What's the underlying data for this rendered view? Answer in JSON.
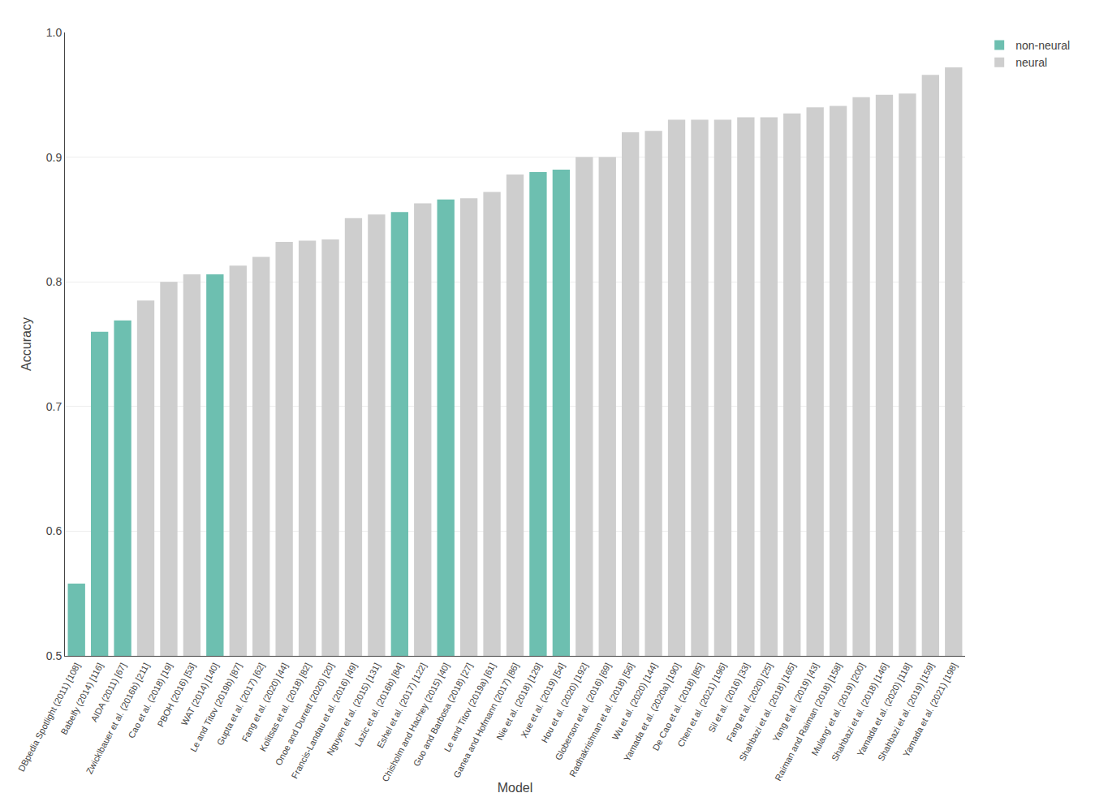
{
  "chart_data": {
    "type": "bar",
    "xlabel": "Model",
    "ylabel": "Accuracy",
    "categories": [
      "DBpedia Spotlight (2011) [108]",
      "Babelfy (2014) [116]",
      "AIDA (2011) [67]",
      "Zwicklbauer et al. (2016b) [211]",
      "Cao et al. (2018) [19]",
      "PBOH (2016) [53]",
      "WAT (2014) [140]",
      "Le and Titov (2019b) [87]",
      "Gupta et al. (2017) [62]",
      "Fang et al. (2020) [44]",
      "Kolitsas et al. (2018) [82]",
      "Onoe and Durrett (2020) [20]",
      "Francis-Landau et al. (2016) [49]",
      "Nguyen et al. (2015) [131]",
      "Lazic et al. (2016b) [84]",
      "Eshel et al. (2017) [122]",
      "Chisholm and Hachey (2015) [40]",
      "Guo and Barbosa (2018) [27]",
      "Le and Titov (2019a) [61]",
      "Ganea and Hofmann (2017) [86]",
      "Nie et al. (2018) [129]",
      "Xue et al. (2019) [54]",
      "Hou et al. (2020) [192]",
      "Globerson et al. (2016) [69]",
      "Radhakrishnan et al. (2018) [56]",
      "Wu et al. (2020) [144]",
      "Yamada et al. (2020a) [190]",
      "De Cao et al. (2018) [85]",
      "Chen et al. (2021) [196]",
      "Sil et al. (2016) [33]",
      "Fang et al. (2020) [25]",
      "Shahbazi et al. (2018) [165]",
      "Yang et al. (2019) [43]",
      "Raiman and Raiman (2018) [158]",
      "Mulang' et al. (2019) [200]",
      "Shahbazi et al. (2018) [146]",
      "Yamada et al. (2020) [118]",
      "Shahbazi et al. (2019) [159]",
      "Yamada et al. (2021) [198]"
    ],
    "series": [
      {
        "name": "non-neural",
        "color": "#6dbfb0",
        "values": [
          0.558,
          0.76,
          0.769,
          null,
          null,
          null,
          0.806,
          null,
          null,
          null,
          null,
          null,
          null,
          null,
          0.856,
          null,
          0.866,
          null,
          null,
          null,
          0.888,
          0.89,
          null,
          null,
          null,
          null,
          null,
          null,
          null,
          null,
          null,
          null,
          null,
          null,
          null,
          null,
          null,
          null,
          null
        ]
      },
      {
        "name": "neural",
        "color": "#cecece",
        "values": [
          null,
          null,
          null,
          0.785,
          0.8,
          0.806,
          null,
          0.813,
          0.82,
          0.832,
          0.833,
          0.834,
          0.851,
          0.854,
          null,
          0.863,
          null,
          0.867,
          0.872,
          0.886,
          null,
          null,
          0.9,
          0.9,
          0.92,
          0.921,
          0.93,
          0.93,
          0.93,
          0.932,
          0.932,
          0.935,
          0.94,
          0.941,
          0.948,
          0.95,
          0.951,
          0.966,
          0.972
        ]
      }
    ],
    "ylim": [
      0.5,
      1.0
    ],
    "yticks": [
      0.5,
      0.6,
      0.7,
      0.8,
      0.9,
      {
        "value": 1.0,
        "label": "1.0"
      }
    ],
    "grid": true,
    "legend": "right"
  }
}
